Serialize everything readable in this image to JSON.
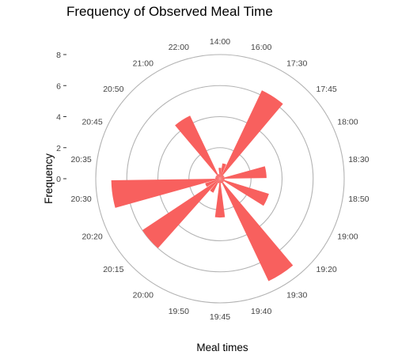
{
  "chart_data": {
    "type": "bar",
    "polar": true,
    "title": "Frequency of Observed Meal Time",
    "xlabel": "Meal times",
    "ylabel": "Frequency",
    "ylim": [
      0,
      8
    ],
    "yticks": [
      0,
      2,
      4,
      6,
      8
    ],
    "grid": true,
    "legend": "none",
    "color": "#F8605E",
    "categories": [
      "14:00",
      "16:00",
      "17:30",
      "17:45",
      "18:00",
      "18:30",
      "18:50",
      "19:00",
      "19:20",
      "19:30",
      "19:40",
      "19:45",
      "19:50",
      "20:00",
      "20:15",
      "20:20",
      "20:30",
      "20:35",
      "20:45",
      "20:50",
      "21:00",
      "22:00"
    ],
    "values": [
      0.7,
      1,
      6.3,
      0.3,
      0.3,
      3,
      0.3,
      3.3,
      0.3,
      7.3,
      0.3,
      2.5,
      0.3,
      1,
      6,
      1,
      7,
      0.3,
      0.3,
      0.3,
      4.5,
      0.3
    ]
  }
}
